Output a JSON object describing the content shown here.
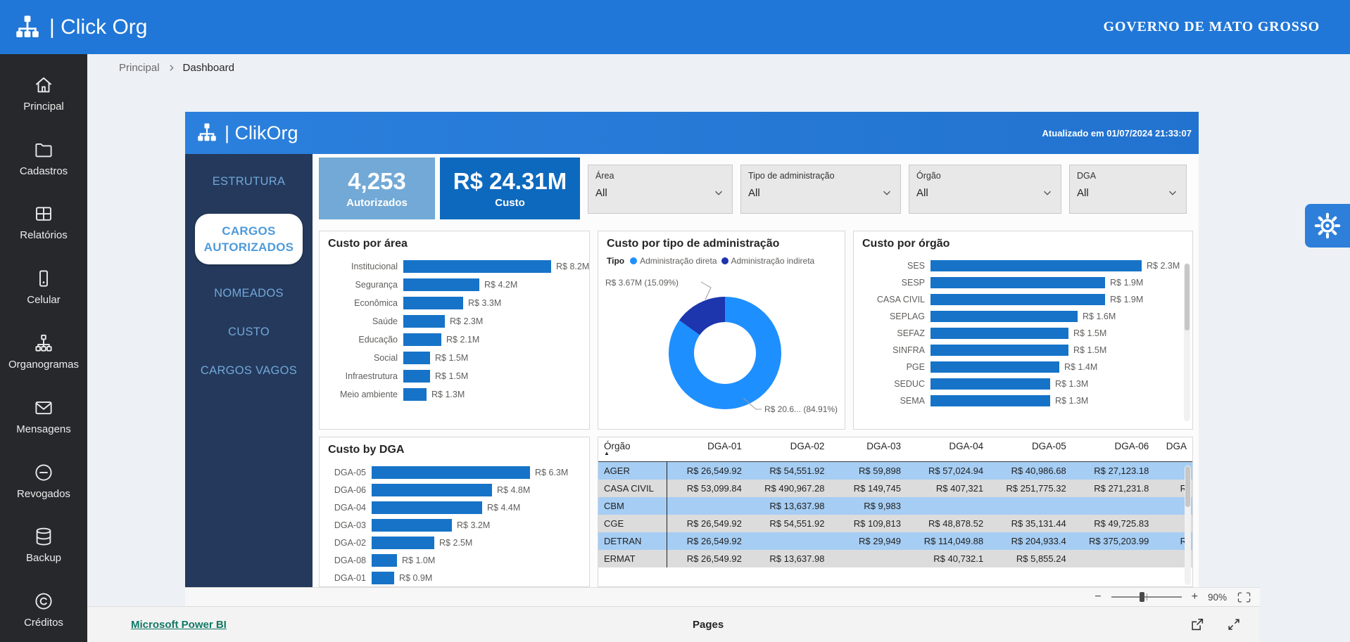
{
  "app_header": {
    "brand": "| Click Org",
    "org_name": "GOVERNO DE MATO GROSSO"
  },
  "sidebar": {
    "items": [
      {
        "id": "principal",
        "label": "Principal",
        "icon": "home"
      },
      {
        "id": "cadastros",
        "label": "Cadastros",
        "icon": "folder"
      },
      {
        "id": "relatorios",
        "label": "Relatórios",
        "icon": "grid"
      },
      {
        "id": "celular",
        "label": "Celular",
        "icon": "phone"
      },
      {
        "id": "organogramas",
        "label": "Organogramas",
        "icon": "sitemap"
      },
      {
        "id": "mensagens",
        "label": "Mensagens",
        "icon": "envelope"
      },
      {
        "id": "revogados",
        "label": "Revogados",
        "icon": "minus-circle"
      },
      {
        "id": "backup",
        "label": "Backup",
        "icon": "database"
      },
      {
        "id": "creditos",
        "label": "Créditos",
        "icon": "copyright"
      }
    ]
  },
  "breadcrumb": {
    "parent": "Principal",
    "current": "Dashboard"
  },
  "report": {
    "banner": {
      "brand": "| ClikOrg",
      "updated": "Atualizado em 01/07/2024 21:33:07"
    },
    "nav": {
      "items": [
        "ESTRUTURA",
        "CARGOS AUTORIZADOS",
        "NOMEADOS",
        "CUSTO",
        "CARGOS VAGOS"
      ],
      "active_index": 1
    },
    "kpis": [
      {
        "value": "4,253",
        "label": "Autorizados",
        "bg": "#72a9d6"
      },
      {
        "value": "R$ 24.31M",
        "label": "Custo",
        "bg": "#0d69be"
      }
    ],
    "filters": [
      {
        "label": "Área",
        "value": "All"
      },
      {
        "label": "Tipo de administração",
        "value": "All"
      },
      {
        "label": "Órgão",
        "value": "All"
      },
      {
        "label": "DGA",
        "value": "All"
      }
    ]
  },
  "chart_data": [
    {
      "type": "bar",
      "orientation": "horizontal",
      "title": "Custo por área",
      "categories": [
        "Institucional",
        "Segurança",
        "Econômica",
        "Saúde",
        "Educação",
        "Social",
        "Infraestrutura",
        "Meio ambiente"
      ],
      "values": [
        8.2,
        4.2,
        3.3,
        2.3,
        2.1,
        1.5,
        1.5,
        1.3
      ],
      "value_labels": [
        "R$ 8.2M",
        "R$ 4.2M",
        "R$ 3.3M",
        "R$ 2.3M",
        "R$ 2.1M",
        "R$ 1.5M",
        "R$ 1.5M",
        "R$ 1.3M"
      ],
      "ylabel": "",
      "xlabel": "",
      "unit": "R$ M",
      "bar_color": "#1673c8"
    },
    {
      "type": "pie",
      "subtype": "donut",
      "title": "Custo por tipo de administração",
      "legend_title": "Tipo",
      "legend_position": "top",
      "slices": [
        {
          "label": "Administração direta",
          "pct": 84.91,
          "callout": "R$ 20.6... (84.91%)",
          "color": "#1e8fff"
        },
        {
          "label": "Administração indireta",
          "pct": 15.09,
          "callout": "R$ 3.67M (15.09%)",
          "color": "#1d35ad"
        }
      ]
    },
    {
      "type": "bar",
      "orientation": "horizontal",
      "title": "Custo por órgão",
      "categories": [
        "SES",
        "SESP",
        "CASA CIVIL",
        "SEPLAG",
        "SEFAZ",
        "SINFRA",
        "PGE",
        "SEDUC",
        "SEMA"
      ],
      "values": [
        2.3,
        1.9,
        1.9,
        1.6,
        1.5,
        1.5,
        1.4,
        1.3,
        1.3
      ],
      "value_labels": [
        "R$ 2.3M",
        "R$ 1.9M",
        "R$ 1.9M",
        "R$ 1.6M",
        "R$ 1.5M",
        "R$ 1.5M",
        "R$ 1.4M",
        "R$ 1.3M",
        "R$ 1.3M"
      ],
      "ylabel": "",
      "xlabel": "",
      "unit": "R$ M",
      "bar_color": "#1673c8",
      "scrollbar": true
    },
    {
      "type": "bar",
      "orientation": "horizontal",
      "title": "Custo by DGA",
      "categories": [
        "DGA-05",
        "DGA-06",
        "DGA-04",
        "DGA-03",
        "DGA-02",
        "DGA-08",
        "DGA-01"
      ],
      "values": [
        6.3,
        4.8,
        4.4,
        3.2,
        2.5,
        1.0,
        0.9
      ],
      "value_labels": [
        "R$ 6.3M",
        "R$ 4.8M",
        "R$ 4.4M",
        "R$ 3.2M",
        "R$ 2.5M",
        "R$ 1.0M",
        "R$ 0.9M"
      ],
      "ylabel": "",
      "xlabel": "",
      "unit": "R$ M",
      "bar_color": "#1673c8",
      "clipped_bottom": true
    },
    {
      "type": "table",
      "columns": [
        "Órgão",
        "DGA-01",
        "DGA-02",
        "DGA-03",
        "DGA-04",
        "DGA-05",
        "DGA-06",
        "DGA"
      ],
      "sorted_by": "Órgão",
      "sort_dir": "asc",
      "rows": [
        {
          "org": "AGER",
          "cells": [
            "R$ 26,549.92",
            "R$ 54,551.92",
            "R$ 59,898",
            "R$ 57,024.94",
            "R$ 40,986.68",
            "R$ 27,123.18",
            ""
          ]
        },
        {
          "org": "CASA CIVIL",
          "cells": [
            "R$ 53,099.84",
            "R$ 490,967.28",
            "R$ 149,745",
            "R$ 407,321",
            "R$ 251,775.32",
            "R$ 271,231.8",
            "R"
          ]
        },
        {
          "org": "CBM",
          "cells": [
            "",
            "R$ 13,637.98",
            "R$ 9,983",
            "",
            "",
            "",
            ""
          ]
        },
        {
          "org": "CGE",
          "cells": [
            "R$ 26,549.92",
            "R$ 54,551.92",
            "R$ 109,813",
            "R$ 48,878.52",
            "R$ 35,131.44",
            "R$ 49,725.83",
            ""
          ]
        },
        {
          "org": "DETRAN",
          "cells": [
            "R$ 26,549.92",
            "",
            "R$ 29,949",
            "R$ 114,049.88",
            "R$ 204,933.4",
            "R$ 375,203.99",
            "R"
          ]
        },
        {
          "org": "ERMAT",
          "cells": [
            "R$ 26,549.92",
            "R$ 13,637.98",
            "",
            "R$ 40,732.1",
            "R$ 5,855.24",
            "",
            ""
          ]
        }
      ],
      "row_colors": {
        "odd": "#a6cdf3",
        "even": "#dcdcdc"
      }
    }
  ],
  "zoom_bar": {
    "zoom_level": "90%"
  },
  "footer": {
    "brand_link": "Microsoft Power BI",
    "center_label": "Pages"
  },
  "palette": {
    "header_blue": "#2077d7",
    "sidebar_dark": "#26282b",
    "nav_navy": "#24395b",
    "bar_blue": "#1673c8",
    "donut_light": "#1e8fff",
    "donut_dark": "#1d35ad",
    "kpi_light": "#72a9d6",
    "kpi_dark": "#0d69be",
    "footer_link_green": "#117865"
  }
}
